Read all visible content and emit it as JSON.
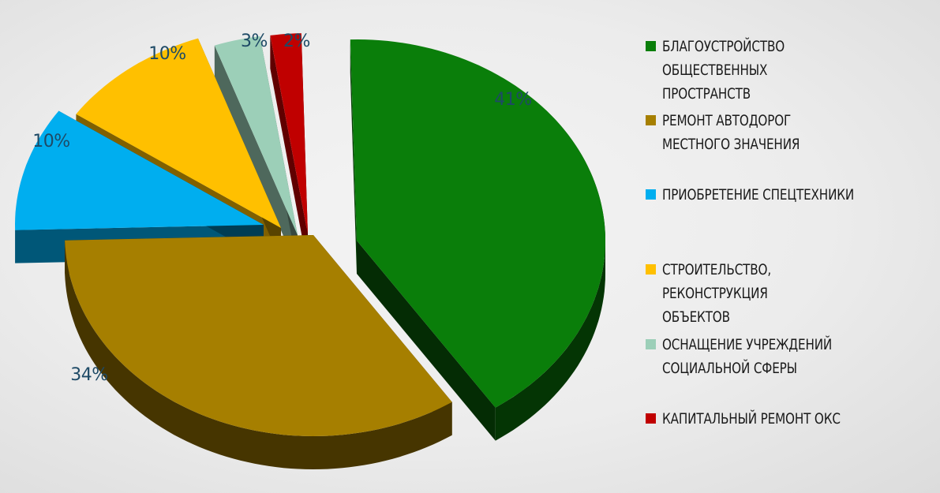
{
  "chart_data": {
    "type": "pie",
    "style": "3d-exploded",
    "slices": [
      {
        "label": "БЛАГОУСТРОЙСТВО ОБЩЕСТВЕННЫХ ПРОСТРАНСТВ",
        "value": 41,
        "value_label": "41%",
        "color": "#0a7e0a"
      },
      {
        "label": "РЕМОНТ АВТОДОРОГ МЕСТНОГО ЗНАЧЕНИЯ",
        "value": 34,
        "value_label": "34%",
        "color": "#a67f00"
      },
      {
        "label": "ПРИОБРЕТЕНИЕ СПЕЦТЕХНИКИ",
        "value": 10,
        "value_label": "10%",
        "color": "#00aeef"
      },
      {
        "label": "СТРОИТЕЛЬСТВО, РЕКОНСТРУКЦИЯ ОБЪЕКТОВ",
        "value": 10,
        "value_label": "10%",
        "color": "#ffc000"
      },
      {
        "label": "ОСНАЩЕНИЕ УЧРЕЖДЕНИЙ СОЦИАЛЬНОЙ СФЕРЫ",
        "value": 3,
        "value_label": "3%",
        "color": "#9ccfb8"
      },
      {
        "label": "КАПИТАЛЬНЫЙ РЕМОНТ ОКС",
        "value": 2,
        "value_label": "2%",
        "color": "#c00000"
      }
    ],
    "legend_position": "right"
  },
  "legend": [
    {
      "text": "БЛАГОУСТРОЙСТВО ОБЩЕСТВЕННЫХ\nПРОСТРАНСТВ",
      "color": "#0a7e0a"
    },
    {
      "text": "РЕМОНТ АВТОДОРОГ\nМЕСТНОГО ЗНАЧЕНИЯ",
      "color": "#a67f00"
    },
    {
      "text": "ПРИОБРЕТЕНИЕ СПЕЦТЕХНИКИ",
      "color": "#00aeef"
    },
    {
      "text": "СТРОИТЕЛЬСТВО, РЕКОНСТРУКЦИЯ\nОБЪЕКТОВ",
      "color": "#ffc000"
    },
    {
      "text": "ОСНАЩЕНИЕ УЧРЕЖДЕНИЙ\nСОЦИАЛЬНОЙ СФЕРЫ",
      "color": "#9ccfb8"
    },
    {
      "text": "КАПИТАЛЬНЫЙ РЕМОНТ ОКС",
      "color": "#c00000"
    }
  ]
}
